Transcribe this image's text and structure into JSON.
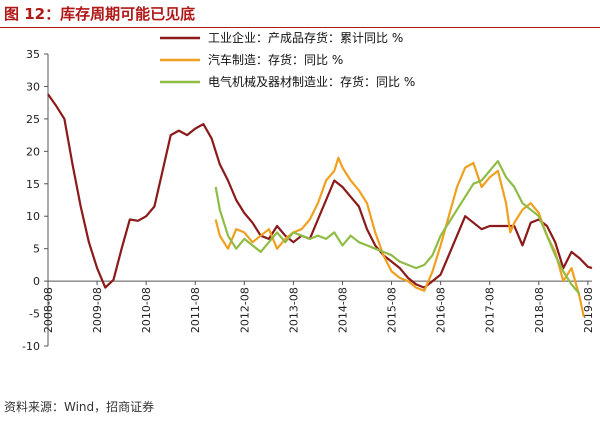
{
  "header": {
    "title": "图 12：库存周期可能已见底"
  },
  "footer": {
    "source": "资料来源：Wind，招商证券"
  },
  "chart_data": {
    "type": "line",
    "ylim": [
      -10,
      35
    ],
    "yticks": [
      -10,
      -5,
      0,
      5,
      10,
      15,
      20,
      25,
      30,
      35
    ],
    "xlim": [
      2008.583,
      2019.667
    ],
    "xticks": [
      {
        "label": "2008-08",
        "value": 2008.583
      },
      {
        "label": "2009-08",
        "value": 2009.583
      },
      {
        "label": "2010-08",
        "value": 2010.583
      },
      {
        "label": "2011-08",
        "value": 2011.583
      },
      {
        "label": "2012-08",
        "value": 2012.583
      },
      {
        "label": "2013-08",
        "value": 2013.583
      },
      {
        "label": "2014-08",
        "value": 2014.583
      },
      {
        "label": "2015-08",
        "value": 2015.583
      },
      {
        "label": "2016-08",
        "value": 2016.583
      },
      {
        "label": "2017-08",
        "value": 2017.583
      },
      {
        "label": "2018-08",
        "value": 2018.583
      },
      {
        "label": "2019-08",
        "value": 2019.583
      }
    ],
    "legend_position": "top",
    "series": [
      {
        "name": "工业企业：产成品存货：累计同比 %",
        "color": "#8b1a1a",
        "points": [
          [
            2008.583,
            28.8
          ],
          [
            2008.75,
            27.0
          ],
          [
            2008.917,
            25.0
          ],
          [
            2009.083,
            18.0
          ],
          [
            2009.25,
            11.5
          ],
          [
            2009.417,
            6.0
          ],
          [
            2009.583,
            2.0
          ],
          [
            2009.75,
            -1.0
          ],
          [
            2009.917,
            0.2
          ],
          [
            2010.083,
            5.0
          ],
          [
            2010.25,
            9.5
          ],
          [
            2010.417,
            9.3
          ],
          [
            2010.583,
            10.0
          ],
          [
            2010.75,
            11.5
          ],
          [
            2010.917,
            17.0
          ],
          [
            2011.083,
            22.5
          ],
          [
            2011.25,
            23.2
          ],
          [
            2011.417,
            22.5
          ],
          [
            2011.583,
            23.5
          ],
          [
            2011.75,
            24.2
          ],
          [
            2011.917,
            22.0
          ],
          [
            2012.083,
            18.0
          ],
          [
            2012.25,
            15.5
          ],
          [
            2012.417,
            12.5
          ],
          [
            2012.583,
            10.5
          ],
          [
            2012.75,
            9.0
          ],
          [
            2012.917,
            7.0
          ],
          [
            2013.083,
            6.5
          ],
          [
            2013.25,
            8.5
          ],
          [
            2013.417,
            7.0
          ],
          [
            2013.583,
            6.0
          ],
          [
            2013.75,
            7.0
          ],
          [
            2013.917,
            6.5
          ],
          [
            2014.083,
            9.5
          ],
          [
            2014.25,
            12.5
          ],
          [
            2014.417,
            15.5
          ],
          [
            2014.583,
            14.5
          ],
          [
            2014.75,
            13.0
          ],
          [
            2014.917,
            11.5
          ],
          [
            2015.083,
            8.0
          ],
          [
            2015.25,
            5.5
          ],
          [
            2015.417,
            4.0
          ],
          [
            2015.583,
            3.0
          ],
          [
            2015.75,
            2.0
          ],
          [
            2015.917,
            0.5
          ],
          [
            2016.083,
            -0.5
          ],
          [
            2016.25,
            -1.0
          ],
          [
            2016.417,
            0.0
          ],
          [
            2016.583,
            1.0
          ],
          [
            2016.75,
            4.0
          ],
          [
            2016.917,
            7.0
          ],
          [
            2017.083,
            10.0
          ],
          [
            2017.25,
            9.0
          ],
          [
            2017.417,
            8.0
          ],
          [
            2017.583,
            8.5
          ],
          [
            2017.75,
            8.5
          ],
          [
            2017.917,
            8.5
          ],
          [
            2018.083,
            8.5
          ],
          [
            2018.25,
            5.5
          ],
          [
            2018.417,
            9.0
          ],
          [
            2018.583,
            9.5
          ],
          [
            2018.75,
            8.5
          ],
          [
            2018.917,
            6.0
          ],
          [
            2019.083,
            2.0
          ],
          [
            2019.25,
            4.5
          ],
          [
            2019.417,
            3.5
          ],
          [
            2019.583,
            2.2
          ],
          [
            2019.667,
            2.0
          ]
        ]
      },
      {
        "name": "汽车制造：存货：同比 %",
        "color": "#f0a020",
        "points": [
          [
            2012.0,
            9.5
          ],
          [
            2012.083,
            7.0
          ],
          [
            2012.25,
            5.0
          ],
          [
            2012.417,
            8.0
          ],
          [
            2012.583,
            7.5
          ],
          [
            2012.75,
            6.0
          ],
          [
            2012.917,
            7.0
          ],
          [
            2013.083,
            8.0
          ],
          [
            2013.25,
            5.0
          ],
          [
            2013.417,
            6.5
          ],
          [
            2013.583,
            7.5
          ],
          [
            2013.75,
            8.0
          ],
          [
            2013.917,
            9.5
          ],
          [
            2014.083,
            12.0
          ],
          [
            2014.25,
            15.5
          ],
          [
            2014.417,
            17.0
          ],
          [
            2014.5,
            19.0
          ],
          [
            2014.583,
            17.5
          ],
          [
            2014.75,
            15.5
          ],
          [
            2014.917,
            14.0
          ],
          [
            2015.083,
            12.0
          ],
          [
            2015.25,
            7.5
          ],
          [
            2015.417,
            4.0
          ],
          [
            2015.583,
            1.5
          ],
          [
            2015.75,
            0.5
          ],
          [
            2015.917,
            0.0
          ],
          [
            2016.083,
            -1.0
          ],
          [
            2016.25,
            -1.5
          ],
          [
            2016.417,
            1.5
          ],
          [
            2016.583,
            5.5
          ],
          [
            2016.75,
            10.0
          ],
          [
            2016.917,
            14.5
          ],
          [
            2017.083,
            17.5
          ],
          [
            2017.25,
            18.2
          ],
          [
            2017.417,
            14.5
          ],
          [
            2017.583,
            16.0
          ],
          [
            2017.75,
            17.0
          ],
          [
            2017.917,
            12.0
          ],
          [
            2018.0,
            7.5
          ],
          [
            2018.083,
            9.0
          ],
          [
            2018.25,
            11.0
          ],
          [
            2018.417,
            12.0
          ],
          [
            2018.583,
            10.5
          ],
          [
            2018.75,
            7.0
          ],
          [
            2018.917,
            4.5
          ],
          [
            2019.083,
            0.0
          ],
          [
            2019.25,
            2.0
          ],
          [
            2019.417,
            -2.5
          ],
          [
            2019.5,
            -5.5
          ]
        ]
      },
      {
        "name": "电气机械及器材制造业：存货：同比 %",
        "color": "#8fbc45",
        "points": [
          [
            2012.0,
            14.5
          ],
          [
            2012.083,
            11.0
          ],
          [
            2012.25,
            7.0
          ],
          [
            2012.417,
            5.0
          ],
          [
            2012.583,
            6.5
          ],
          [
            2012.75,
            5.5
          ],
          [
            2012.917,
            4.5
          ],
          [
            2013.083,
            6.0
          ],
          [
            2013.25,
            7.5
          ],
          [
            2013.417,
            6.0
          ],
          [
            2013.583,
            7.5
          ],
          [
            2013.75,
            7.0
          ],
          [
            2013.917,
            6.5
          ],
          [
            2014.083,
            7.0
          ],
          [
            2014.25,
            6.5
          ],
          [
            2014.417,
            7.5
          ],
          [
            2014.583,
            5.5
          ],
          [
            2014.75,
            7.0
          ],
          [
            2014.917,
            6.0
          ],
          [
            2015.083,
            5.5
          ],
          [
            2015.25,
            5.0
          ],
          [
            2015.417,
            4.5
          ],
          [
            2015.583,
            4.0
          ],
          [
            2015.75,
            3.0
          ],
          [
            2015.917,
            2.5
          ],
          [
            2016.083,
            2.0
          ],
          [
            2016.25,
            2.5
          ],
          [
            2016.417,
            4.0
          ],
          [
            2016.583,
            7.0
          ],
          [
            2016.75,
            9.0
          ],
          [
            2016.917,
            11.0
          ],
          [
            2017.083,
            13.0
          ],
          [
            2017.25,
            15.0
          ],
          [
            2017.417,
            15.5
          ],
          [
            2017.583,
            17.0
          ],
          [
            2017.75,
            18.5
          ],
          [
            2017.917,
            16.0
          ],
          [
            2018.083,
            14.5
          ],
          [
            2018.25,
            12.0
          ],
          [
            2018.417,
            11.0
          ],
          [
            2018.583,
            10.0
          ],
          [
            2018.75,
            7.0
          ],
          [
            2018.917,
            4.0
          ],
          [
            2019.083,
            1.5
          ],
          [
            2019.25,
            -0.5
          ],
          [
            2019.417,
            -2.0
          ]
        ]
      }
    ]
  }
}
